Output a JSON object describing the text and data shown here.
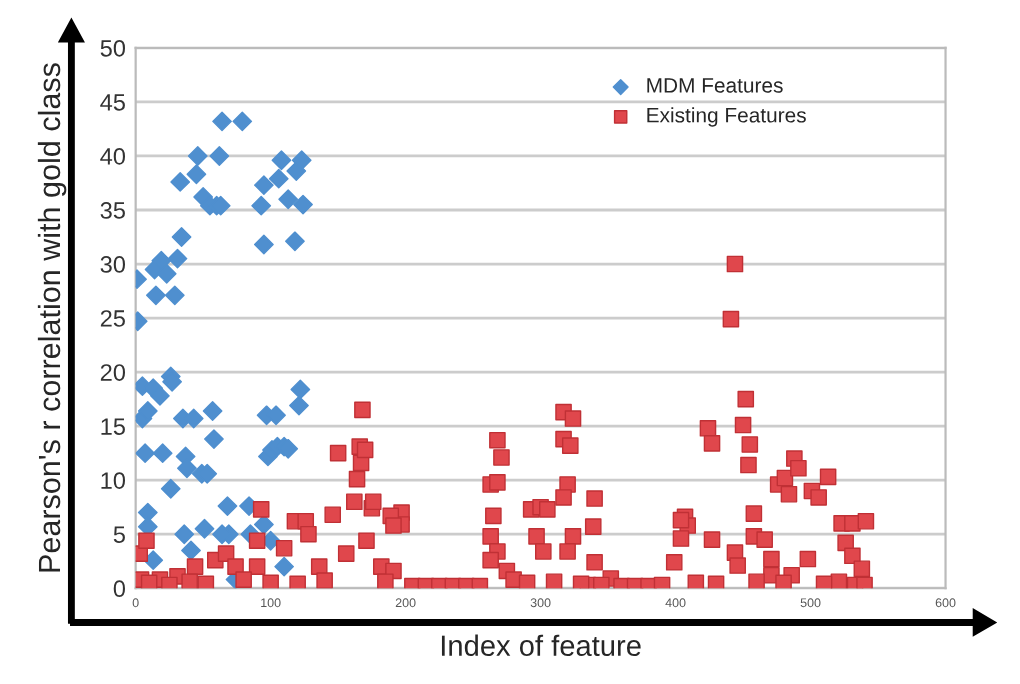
{
  "chart_data": {
    "type": "scatter",
    "xlabel": "Index of feature",
    "ylabel": "Pearson's r correlation with gold class",
    "xlim": [
      0,
      600
    ],
    "xticks": [
      0,
      100,
      200,
      300,
      400,
      500,
      600
    ],
    "ylim": [
      0,
      50
    ],
    "yticks": [
      0,
      5,
      10,
      15,
      20,
      25,
      30,
      35,
      40,
      45,
      50
    ],
    "grid": "y",
    "legend": "top right",
    "series": [
      {
        "name": "MDM Features",
        "color": "#4f8fcf",
        "marker": "diamond",
        "x": [
          1,
          1.5,
          5,
          5,
          7,
          9,
          9,
          9,
          13,
          14,
          15,
          19,
          18,
          20,
          23,
          26,
          27,
          26,
          29,
          31,
          33,
          34,
          35,
          36,
          37,
          38,
          43,
          45,
          46,
          49,
          50,
          53,
          51,
          55,
          57,
          58,
          60,
          62,
          64,
          63,
          68,
          69,
          79,
          84,
          93,
          95,
          95,
          97,
          98,
          101,
          104,
          105,
          106,
          108,
          110,
          113,
          113,
          118,
          119,
          121,
          122,
          123,
          124,
          64,
          41,
          100,
          95,
          85,
          13,
          74,
          110
        ],
        "values": [
          28.6,
          24.7,
          18.7,
          15.7,
          12.5,
          16.4,
          7,
          5.7,
          18.5,
          29.5,
          27.1,
          30.3,
          17.8,
          12.5,
          29.1,
          19.6,
          19.1,
          9.2,
          27.1,
          30.5,
          37.6,
          32.5,
          15.7,
          5,
          12.2,
          11.1,
          15.7,
          38.3,
          40,
          10.6,
          36.2,
          10.6,
          5.5,
          35.4,
          16.4,
          13.8,
          35.4,
          40,
          43.2,
          35.4,
          7.6,
          5,
          43.2,
          7.6,
          35.4,
          37.3,
          31.8,
          16,
          12.2,
          12.8,
          16,
          13.1,
          37.9,
          39.6,
          13.1,
          12.9,
          36,
          32.1,
          38.6,
          16.9,
          18.4,
          39.6,
          35.5,
          5,
          3.5,
          4.4,
          5.9,
          5,
          2.6,
          0.8,
          2
        ]
      },
      {
        "name": "Existing Features",
        "color": "#e0474c",
        "marker": "square",
        "x": [
          3,
          8,
          4,
          18,
          31,
          44,
          59,
          67,
          74,
          90,
          93,
          90,
          110,
          118,
          126,
          128,
          136,
          146,
          150,
          156,
          162,
          164,
          167,
          168,
          166,
          170,
          171,
          175,
          176,
          182,
          197,
          197,
          189,
          191,
          191,
          268,
          271,
          263,
          268,
          265,
          263,
          268,
          263,
          275,
          293,
          300,
          305,
          297,
          302,
          317,
          324,
          317,
          322,
          320,
          317,
          324,
          320,
          340,
          339,
          340,
          335,
          352,
          399,
          407,
          409,
          404,
          444,
          441,
          452,
          450,
          455,
          454,
          424,
          427,
          404,
          427,
          444,
          446,
          458,
          458,
          466,
          471,
          476,
          481,
          488,
          491,
          484,
          501,
          506,
          513,
          523,
          531,
          541,
          526,
          531,
          538,
          486,
          498,
          471,
          521,
          533,
          10,
          25,
          40,
          52,
          80,
          100,
          120,
          140,
          185,
          205,
          215,
          225,
          235,
          245,
          255,
          280,
          290,
          310,
          330,
          345,
          360,
          370,
          380,
          390,
          415,
          430,
          460,
          480,
          510,
          540
        ],
        "values": [
          3.2,
          4.4,
          0.8,
          0.8,
          1.1,
          2,
          2.6,
          3.2,
          2,
          4.4,
          7.3,
          2,
          3.7,
          6.2,
          6.2,
          5,
          2,
          6.8,
          12.5,
          3.2,
          8,
          10.1,
          11.6,
          16.5,
          13.1,
          12.8,
          4.4,
          7.4,
          8,
          2,
          7,
          5.9,
          6.7,
          5.8,
          1.6,
          13.7,
          12.1,
          9.6,
          9.8,
          6.7,
          4.8,
          3.4,
          2.6,
          1.6,
          7.3,
          7.5,
          7.3,
          4.8,
          3.4,
          16.3,
          15.7,
          13.8,
          13.2,
          9.6,
          8.4,
          4.8,
          3.4,
          8.3,
          5.7,
          2.4,
          0.3,
          0.9,
          2.4,
          6.6,
          5.8,
          4.6,
          30,
          24.9,
          17.5,
          15.1,
          13.3,
          11.4,
          14.8,
          13.4,
          6.3,
          4.5,
          3.3,
          2.1,
          6.9,
          4.8,
          4.5,
          2.7,
          9.6,
          10.2,
          12,
          11.1,
          8.7,
          9,
          8.4,
          10.3,
          6,
          6,
          6.2,
          4.2,
          3,
          1.8,
          1.2,
          2.7,
          1.2,
          0.6,
          0.3,
          0.5,
          0.3,
          0.6,
          0.4,
          0.8,
          0.5,
          0.4,
          0.7,
          0.6,
          0.2,
          0.2,
          0.2,
          0.2,
          0.2,
          0.2,
          0.8,
          0.5,
          0.6,
          0.4,
          0.3,
          0.2,
          0.2,
          0.2,
          0.3,
          0.5,
          0.4,
          0.6,
          0.5,
          0.4,
          0.3
        ]
      }
    ]
  }
}
